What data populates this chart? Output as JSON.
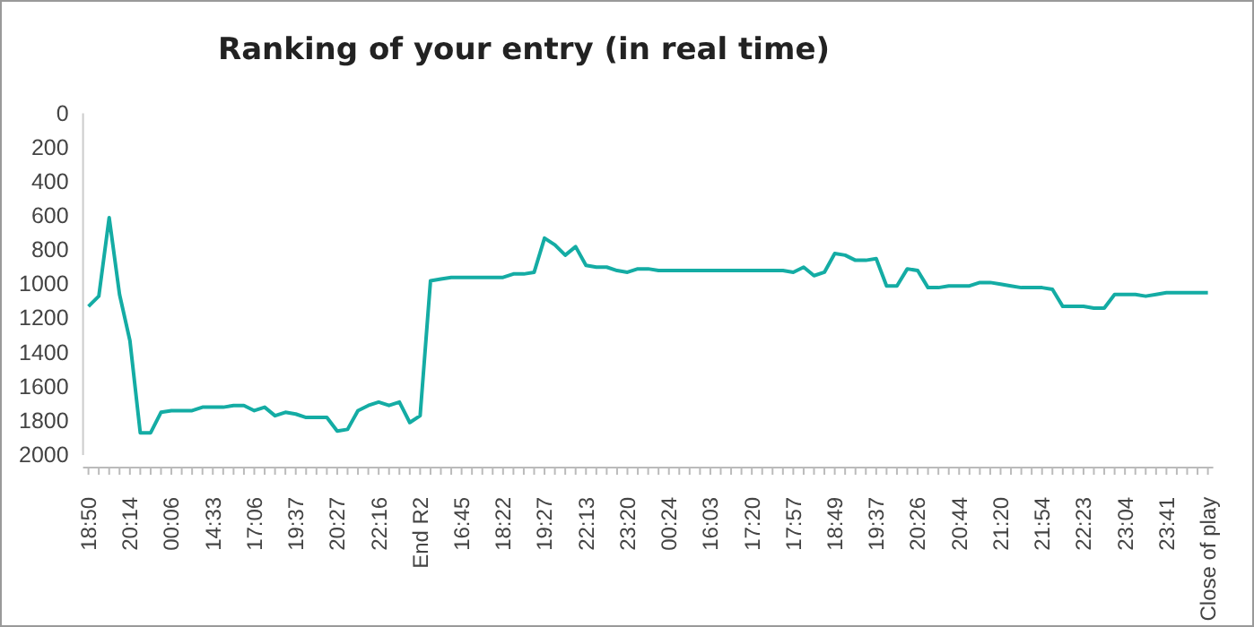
{
  "chart_data": {
    "type": "line",
    "title": "Ranking of your entry (in real time)",
    "categories": [
      "18:50",
      null,
      null,
      null,
      "20:14",
      null,
      null,
      null,
      "00:06",
      null,
      null,
      null,
      "14:33",
      null,
      null,
      null,
      "17:06",
      null,
      null,
      null,
      "19:37",
      null,
      null,
      null,
      "20:27",
      null,
      null,
      null,
      "22:16",
      null,
      null,
      null,
      "End R2",
      null,
      null,
      null,
      "16:45",
      null,
      null,
      null,
      "18:22",
      null,
      null,
      null,
      "19:27",
      null,
      null,
      null,
      "22:13",
      null,
      null,
      null,
      "23:20",
      null,
      null,
      null,
      "00:24",
      null,
      null,
      null,
      "16:03",
      null,
      null,
      null,
      "17:20",
      null,
      null,
      null,
      "17:57",
      null,
      null,
      null,
      "18:49",
      null,
      null,
      null,
      "19:37",
      null,
      null,
      null,
      "20:26",
      null,
      null,
      null,
      "20:44",
      null,
      null,
      null,
      "21:20",
      null,
      null,
      null,
      "21:54",
      null,
      null,
      null,
      "22:23",
      null,
      null,
      null,
      "23:04",
      null,
      null,
      null,
      "23:41",
      null,
      null,
      null,
      "Close of play"
    ],
    "series": [
      {
        "color": "#14aca4",
        "values": [
          1130,
          1070,
          610,
          1060,
          1330,
          1870,
          1870,
          1750,
          1740,
          1740,
          1740,
          1720,
          1720,
          1720,
          1710,
          1710,
          1740,
          1720,
          1770,
          1750,
          1760,
          1780,
          1780,
          1780,
          1860,
          1850,
          1740,
          1710,
          1690,
          1710,
          1690,
          1810,
          1770,
          980,
          970,
          960,
          960,
          960,
          960,
          960,
          960,
          940,
          940,
          930,
          730,
          770,
          830,
          780,
          890,
          900,
          900,
          920,
          930,
          910,
          910,
          920,
          920,
          920,
          920,
          920,
          920,
          920,
          920,
          920,
          920,
          920,
          920,
          920,
          930,
          900,
          950,
          930,
          820,
          830,
          860,
          860,
          850,
          1010,
          1010,
          910,
          920,
          1020,
          1020,
          1010,
          1010,
          1010,
          990,
          990,
          1000,
          1010,
          1020,
          1020,
          1020,
          1030,
          1130,
          1130,
          1130,
          1140,
          1140,
          1060,
          1060,
          1060,
          1070,
          1060,
          1050,
          1050,
          1050,
          1050,
          1050
        ]
      }
    ],
    "ylim": [
      2000,
      0
    ],
    "yticks": [
      0,
      200,
      400,
      600,
      800,
      1000,
      1200,
      1400,
      1600,
      1800,
      2000
    ],
    "grid": false,
    "marker": "none",
    "line_style": "solid"
  }
}
